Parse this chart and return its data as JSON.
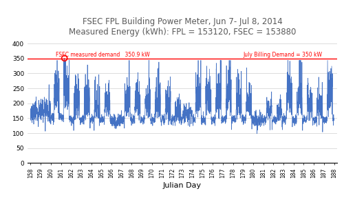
{
  "title_line1": "FSEC FPL Building Power Meter, Jun 7- Jul 8, 2014",
  "title_line2": "Measured Energy (kWh): FPL = 153120, FSEC = 153880",
  "xlabel": "Julian Day",
  "ylim": [
    0,
    420
  ],
  "yticks": [
    0,
    50,
    100,
    150,
    200,
    250,
    300,
    350,
    400
  ],
  "xstart": 158,
  "xend": 188,
  "demand_line": 350,
  "demand_peak": 350.9,
  "fsec_label": "FSEC measured demand   350.9 kW",
  "july_label": "July Billing Demand = 350 kW",
  "line_color": "#4472C4",
  "demand_color": "#FF0000",
  "title_color": "#595959",
  "background_color": "#FFFFFF"
}
